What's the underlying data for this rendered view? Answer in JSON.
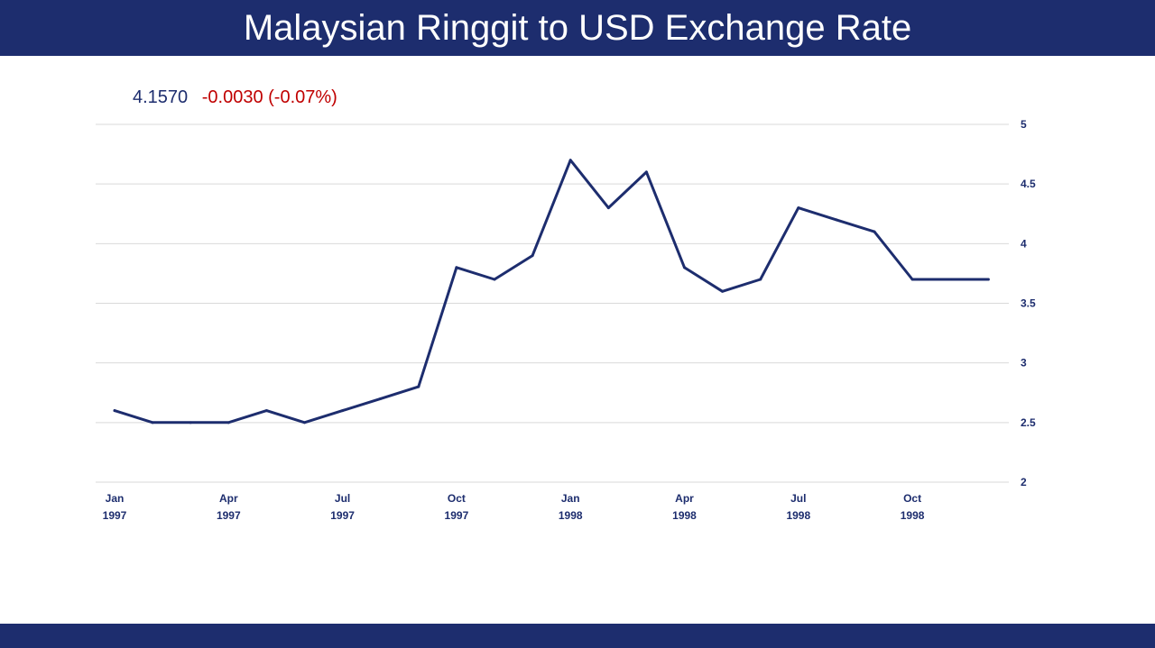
{
  "header": {
    "title": "Malaysian Ringgit to USD Exchange Rate"
  },
  "quote": {
    "price": "4.1570",
    "change": "-0.0030 (-0.07%)"
  },
  "colors": {
    "brand": "#1d2d6e",
    "negative": "#c00000",
    "grid": "#d9d9d9",
    "line": "#1d2d6e"
  },
  "chart_data": {
    "type": "line",
    "grid": true,
    "ylim": [
      2,
      5
    ],
    "yticks": [
      2,
      2.5,
      3,
      3.5,
      4,
      4.5,
      5
    ],
    "ytick_labels": [
      "2",
      "2.5",
      "3",
      "3.5",
      "4",
      "4.5",
      "5"
    ],
    "y_axis_position": "right",
    "x_tick_labels": [
      {
        "index": 0,
        "month": "Jan",
        "year": "1997"
      },
      {
        "index": 3,
        "month": "Apr",
        "year": "1997"
      },
      {
        "index": 6,
        "month": "Jul",
        "year": "1997"
      },
      {
        "index": 9,
        "month": "Oct",
        "year": "1997"
      },
      {
        "index": 12,
        "month": "Jan",
        "year": "1998"
      },
      {
        "index": 15,
        "month": "Apr",
        "year": "1998"
      },
      {
        "index": 18,
        "month": "Jul",
        "year": "1998"
      },
      {
        "index": 21,
        "month": "Oct",
        "year": "1998"
      }
    ],
    "x": [
      "1997-01",
      "1997-02",
      "1997-03",
      "1997-04",
      "1997-05",
      "1997-06",
      "1997-07",
      "1997-08",
      "1997-09",
      "1997-10",
      "1997-11",
      "1997-12",
      "1998-01",
      "1998-02",
      "1998-03",
      "1998-04",
      "1998-05",
      "1998-06",
      "1998-07",
      "1998-08",
      "1998-09",
      "1998-10",
      "1998-11",
      "1998-12"
    ],
    "series": [
      {
        "values": [
          2.6,
          2.5,
          2.5,
          2.5,
          2.6,
          2.5,
          2.6,
          2.7,
          2.8,
          3.8,
          3.7,
          3.9,
          4.7,
          4.3,
          4.6,
          3.8,
          3.6,
          3.7,
          4.3,
          4.2,
          4.1,
          3.7,
          3.7,
          3.7
        ]
      }
    ]
  }
}
